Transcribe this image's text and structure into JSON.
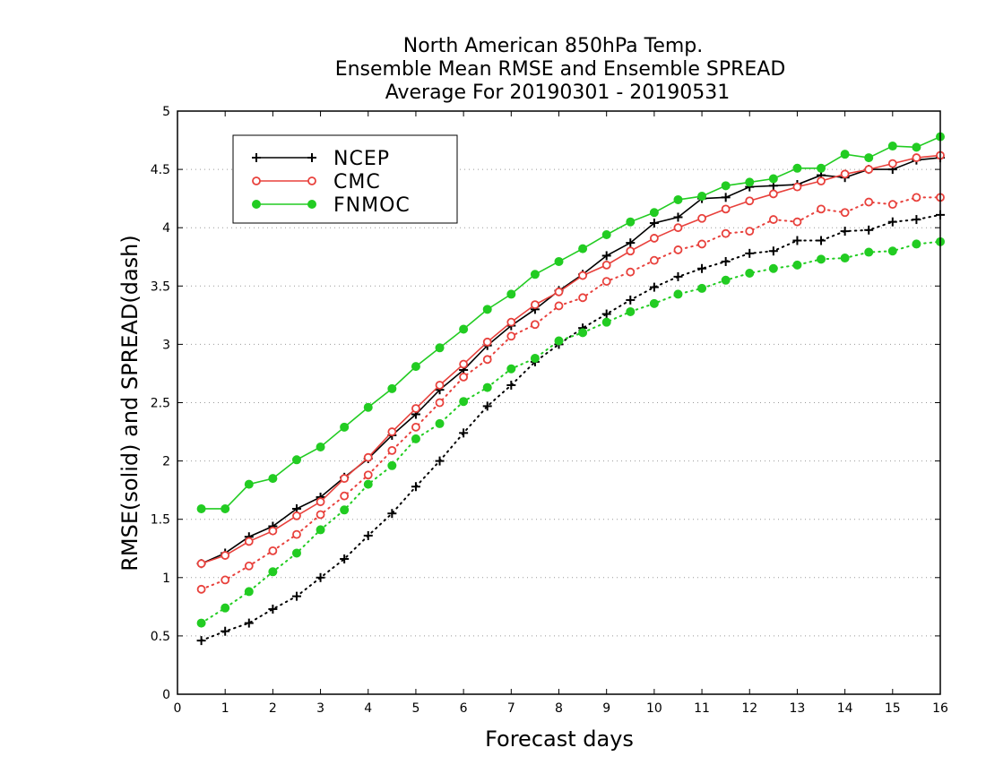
{
  "chart_data": {
    "type": "line",
    "title": [
      "North American 850hPa Temp.",
      "Ensemble Mean RMSE and Ensemble SPREAD",
      "Average For 20190301 - 20190531"
    ],
    "xlabel": "Forecast days",
    "ylabel": "RMSE(solid) and SPREAD(dash)",
    "xlim": [
      0,
      16
    ],
    "ylim": [
      0,
      5
    ],
    "x_ticks": [
      "0",
      "1",
      "2",
      "3",
      "4",
      "5",
      "6",
      "7",
      "8",
      "9",
      "10",
      "11",
      "12",
      "13",
      "14",
      "15",
      "16"
    ],
    "y_ticks": [
      "0",
      "0.5",
      "1",
      "1.5",
      "2",
      "2.5",
      "3",
      "3.5",
      "4",
      "4.5",
      "5"
    ],
    "grid": "horizontal dotted",
    "legend_position": "top-left",
    "x": [
      0.5,
      1,
      1.5,
      2,
      2.5,
      3,
      3.5,
      4,
      4.5,
      5,
      5.5,
      6,
      6.5,
      7,
      7.5,
      8,
      8.5,
      9,
      9.5,
      10,
      10.5,
      11,
      11.5,
      12,
      12.5,
      13,
      13.5,
      14,
      14.5,
      15,
      15.5,
      16
    ],
    "series": [
      {
        "name": "NCEP",
        "metric": "RMSE",
        "style": "solid",
        "marker": "plus",
        "color": "#000000",
        "values": [
          1.12,
          1.21,
          1.35,
          1.44,
          1.59,
          1.69,
          1.86,
          2.02,
          2.22,
          2.4,
          2.61,
          2.78,
          2.99,
          3.16,
          3.3,
          3.46,
          3.6,
          3.76,
          3.87,
          4.04,
          4.09,
          4.25,
          4.26,
          4.35,
          4.36,
          4.37,
          4.45,
          4.43,
          4.5,
          4.5,
          4.58,
          4.6
        ]
      },
      {
        "name": "CMC",
        "metric": "RMSE",
        "style": "solid",
        "marker": "open-circle",
        "color": "#e8413c",
        "values": [
          1.12,
          1.19,
          1.31,
          1.4,
          1.53,
          1.65,
          1.85,
          2.03,
          2.25,
          2.45,
          2.65,
          2.83,
          3.02,
          3.19,
          3.34,
          3.45,
          3.59,
          3.68,
          3.8,
          3.91,
          4.0,
          4.08,
          4.16,
          4.23,
          4.29,
          4.35,
          4.4,
          4.46,
          4.5,
          4.55,
          4.6,
          4.62
        ]
      },
      {
        "name": "FNMOC",
        "metric": "RMSE",
        "style": "solid",
        "marker": "filled-circle",
        "color": "#22cc22",
        "values": [
          1.59,
          1.59,
          1.8,
          1.85,
          2.01,
          2.12,
          2.29,
          2.46,
          2.62,
          2.81,
          2.97,
          3.13,
          3.3,
          3.43,
          3.6,
          3.71,
          3.82,
          3.94,
          4.05,
          4.13,
          4.24,
          4.27,
          4.36,
          4.39,
          4.42,
          4.51,
          4.51,
          4.63,
          4.6,
          4.7,
          4.69,
          4.78
        ]
      },
      {
        "name": "NCEP",
        "metric": "SPREAD",
        "style": "dotted",
        "marker": "plus",
        "color": "#000000",
        "values": [
          0.46,
          0.54,
          0.61,
          0.73,
          0.84,
          1.0,
          1.16,
          1.36,
          1.55,
          1.78,
          2.0,
          2.24,
          2.47,
          2.65,
          2.85,
          3.0,
          3.14,
          3.26,
          3.38,
          3.49,
          3.58,
          3.65,
          3.71,
          3.78,
          3.8,
          3.89,
          3.89,
          3.97,
          3.98,
          4.05,
          4.07,
          4.11
        ]
      },
      {
        "name": "CMC",
        "metric": "SPREAD",
        "style": "dotted",
        "marker": "open-circle",
        "color": "#e8413c",
        "values": [
          0.9,
          0.98,
          1.1,
          1.23,
          1.37,
          1.54,
          1.7,
          1.88,
          2.09,
          2.29,
          2.5,
          2.72,
          2.87,
          3.07,
          3.17,
          3.33,
          3.4,
          3.54,
          3.62,
          3.72,
          3.81,
          3.86,
          3.95,
          3.97,
          4.07,
          4.05,
          4.16,
          4.13,
          4.22,
          4.2,
          4.26,
          4.26
        ]
      },
      {
        "name": "FNMOC",
        "metric": "SPREAD",
        "style": "dotted",
        "marker": "filled-circle",
        "color": "#22cc22",
        "values": [
          0.61,
          0.74,
          0.88,
          1.05,
          1.21,
          1.41,
          1.58,
          1.8,
          1.96,
          2.19,
          2.32,
          2.51,
          2.63,
          2.79,
          2.88,
          3.03,
          3.1,
          3.19,
          3.28,
          3.35,
          3.43,
          3.48,
          3.55,
          3.61,
          3.65,
          3.68,
          3.73,
          3.74,
          3.79,
          3.8,
          3.86,
          3.88
        ]
      }
    ],
    "legend": [
      {
        "label": "NCEP",
        "marker": "plus",
        "color": "#000000"
      },
      {
        "label": "CMC",
        "marker": "open-circle",
        "color": "#e8413c"
      },
      {
        "label": "FNMOC",
        "marker": "filled-circle",
        "color": "#22cc22"
      }
    ]
  }
}
